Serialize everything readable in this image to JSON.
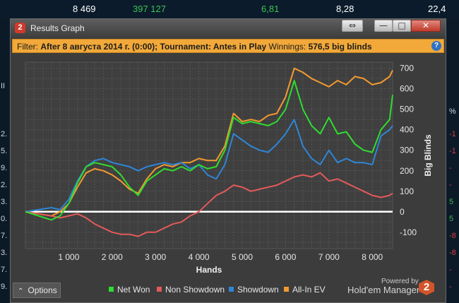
{
  "background": {
    "top_values": [
      {
        "text": "8 469",
        "color": "#ffffff"
      },
      {
        "text": "397 127",
        "color": "#3cc452"
      },
      {
        "text": "6,81",
        "color": "#3cc452"
      },
      {
        "text": "8,28",
        "color": "#ffffff"
      },
      {
        "text": "22,4",
        "color": "#ffffff"
      }
    ],
    "left_numbers": [
      "2.",
      "5.",
      "9.",
      "2.",
      "3.",
      "0.",
      "7.",
      "3.",
      "7.",
      "9."
    ],
    "right_numbers": [
      "-1",
      "-1",
      "-",
      "-",
      "5",
      "5",
      "-8",
      "-8",
      "-",
      "-"
    ],
    "right_header": "%",
    "left_header": "II"
  },
  "window": {
    "title": "Results Graph",
    "app_icon": "2",
    "buttons": {
      "restore": "⇔",
      "minimize": "—",
      "maximize": "□",
      "close": "✕"
    }
  },
  "filter": {
    "label": "Filter:",
    "text": "After 8 августа 2014 г. (0:00); Tournament: Antes in Play",
    "winnings_label": "Winnings:",
    "winnings_value": "576,5 big blinds",
    "help_icon": "?"
  },
  "chart_data": {
    "type": "line",
    "xlabel": "Hands",
    "ylabel": "Big Blinds",
    "xlim": [
      0,
      8469
    ],
    "ylim": [
      -180,
      730
    ],
    "x_ticks": [
      1000,
      2000,
      3000,
      4000,
      5000,
      6000,
      7000,
      8000
    ],
    "x_tick_labels": [
      "1 000",
      "2 000",
      "3 000",
      "4 000",
      "5 000",
      "6 000",
      "7 000",
      "8 000"
    ],
    "y_ticks": [
      -100,
      0,
      100,
      200,
      300,
      400,
      500,
      600,
      700
    ],
    "y_tick_labels": [
      "-100",
      "0",
      "100",
      "200",
      "300",
      "400",
      "500",
      "600",
      "700"
    ],
    "grid": true,
    "legend_position": "bottom",
    "x": [
      0,
      300,
      600,
      800,
      1000,
      1200,
      1400,
      1600,
      1800,
      2000,
      2200,
      2400,
      2600,
      2800,
      3000,
      3200,
      3400,
      3600,
      3800,
      4000,
      4200,
      4400,
      4600,
      4800,
      5000,
      5200,
      5400,
      5600,
      5800,
      6000,
      6200,
      6400,
      6600,
      6800,
      7000,
      7200,
      7400,
      7600,
      7800,
      8000,
      8200,
      8400,
      8469
    ],
    "series": [
      {
        "name": "Net Won",
        "color": "#2fdc2f",
        "values": [
          0,
          -20,
          -40,
          -20,
          40,
          140,
          220,
          240,
          230,
          220,
          180,
          120,
          80,
          150,
          180,
          210,
          200,
          220,
          200,
          230,
          210,
          220,
          300,
          460,
          430,
          440,
          430,
          420,
          440,
          500,
          640,
          500,
          420,
          380,
          460,
          380,
          390,
          330,
          300,
          290,
          400,
          450,
          570
        ]
      },
      {
        "name": "Non Showdown",
        "color": "#e35a5a",
        "values": [
          0,
          -10,
          -20,
          -30,
          -20,
          -10,
          -30,
          -60,
          -80,
          -100,
          -110,
          -110,
          -120,
          -100,
          -100,
          -80,
          -60,
          -50,
          -20,
          0,
          40,
          80,
          100,
          130,
          120,
          100,
          110,
          120,
          130,
          150,
          170,
          180,
          170,
          190,
          150,
          160,
          140,
          120,
          100,
          80,
          70,
          80,
          90
        ]
      },
      {
        "name": "Showdown",
        "color": "#2f86d6",
        "values": [
          0,
          10,
          20,
          10,
          60,
          150,
          220,
          250,
          260,
          240,
          230,
          220,
          200,
          220,
          230,
          240,
          230,
          240,
          210,
          230,
          180,
          160,
          230,
          380,
          350,
          320,
          300,
          290,
          330,
          380,
          450,
          320,
          260,
          230,
          300,
          240,
          260,
          240,
          240,
          230,
          370,
          400,
          420
        ]
      },
      {
        "name": "All-In EV",
        "color": "#f39a2f",
        "values": [
          0,
          -10,
          -20,
          0,
          40,
          120,
          190,
          210,
          200,
          180,
          150,
          110,
          90,
          160,
          210,
          230,
          220,
          240,
          240,
          260,
          250,
          250,
          320,
          480,
          440,
          450,
          440,
          470,
          480,
          560,
          700,
          680,
          650,
          630,
          610,
          640,
          620,
          660,
          650,
          620,
          630,
          660,
          690
        ]
      }
    ]
  },
  "footer": {
    "options_label": "Options",
    "powered_by": "Powered by",
    "brand": "Hold'em Manager",
    "brand_logo": "2"
  }
}
